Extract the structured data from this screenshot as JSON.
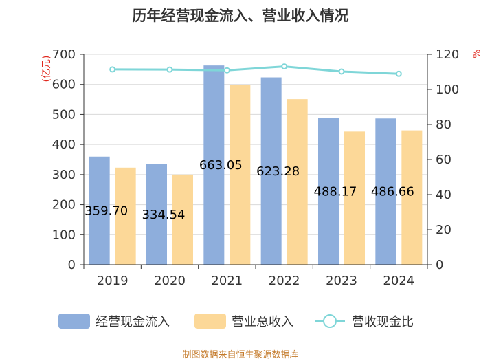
{
  "chart_data": {
    "type": "bar",
    "title": "历年经营现金流入、营业收入情况",
    "categories": [
      "2019",
      "2020",
      "2021",
      "2022",
      "2023",
      "2024"
    ],
    "series": [
      {
        "name": "经营现金流入",
        "type": "bar",
        "axis": "left",
        "color": "#8eaedc",
        "values": [
          359.7,
          334.54,
          663.05,
          623.28,
          488.17,
          486.66
        ]
      },
      {
        "name": "营业总收入",
        "type": "bar",
        "axis": "left",
        "color": "#fcd898",
        "values": [
          323,
          300,
          598,
          551,
          443,
          447
        ]
      },
      {
        "name": "营收现金比",
        "type": "line",
        "axis": "right",
        "color": "#7fd6d8",
        "values": [
          111.4,
          111.3,
          110.9,
          113.1,
          110.2,
          108.9
        ]
      }
    ],
    "data_labels": [
      "359.70",
      "334.54",
      "663.05",
      "623.28",
      "488.17",
      "486.66"
    ],
    "y_left": {
      "label": "(亿元)",
      "ylim": [
        0,
        700
      ],
      "ticks": [
        "0",
        "100",
        "200",
        "300",
        "400",
        "500",
        "600",
        "700"
      ]
    },
    "y_right": {
      "label": "%",
      "ylim": [
        0,
        120
      ],
      "ticks": [
        "0",
        "20",
        "40",
        "60",
        "80",
        "100",
        "120"
      ]
    },
    "grid": true,
    "legend_position": "bottom",
    "source": "制图数据来自恒生聚源数据库"
  }
}
